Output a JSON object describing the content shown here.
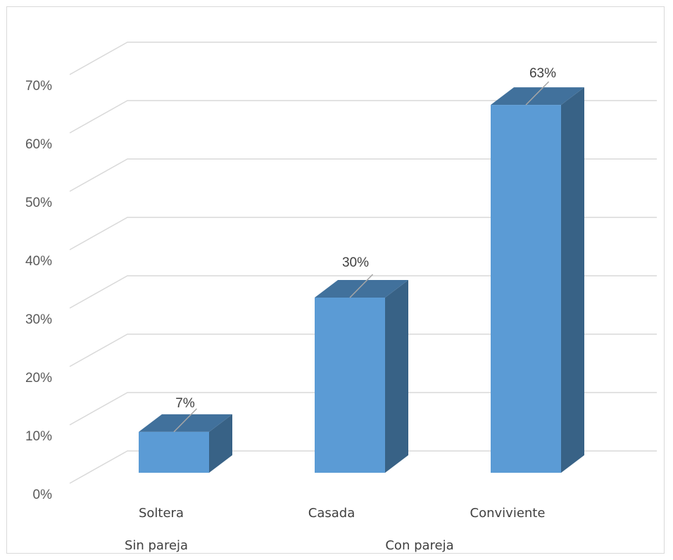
{
  "chart_data": {
    "type": "bar",
    "title": "",
    "xlabel": "",
    "ylabel": "",
    "categories": [
      "Soltera",
      "Casada",
      "Conviviente"
    ],
    "groups": [
      {
        "label": "Sin pareja",
        "categories": [
          "Soltera"
        ]
      },
      {
        "label": "Con pareja",
        "categories": [
          "Casada",
          "Conviviente"
        ]
      }
    ],
    "values": [
      7,
      30,
      63
    ],
    "data_labels": [
      "7%",
      "30%",
      "63%"
    ],
    "y_ticks": [
      "0%",
      "10%",
      "20%",
      "30%",
      "40%",
      "50%",
      "60%",
      "70%"
    ],
    "ylim": [
      0,
      70
    ],
    "grid": true,
    "legend": "none",
    "three_d": true,
    "colors": {
      "bar_front": "#5b9bd5",
      "bar_top": "#41719c",
      "bar_side": "#386286",
      "grid": "#d9d9d9"
    }
  }
}
